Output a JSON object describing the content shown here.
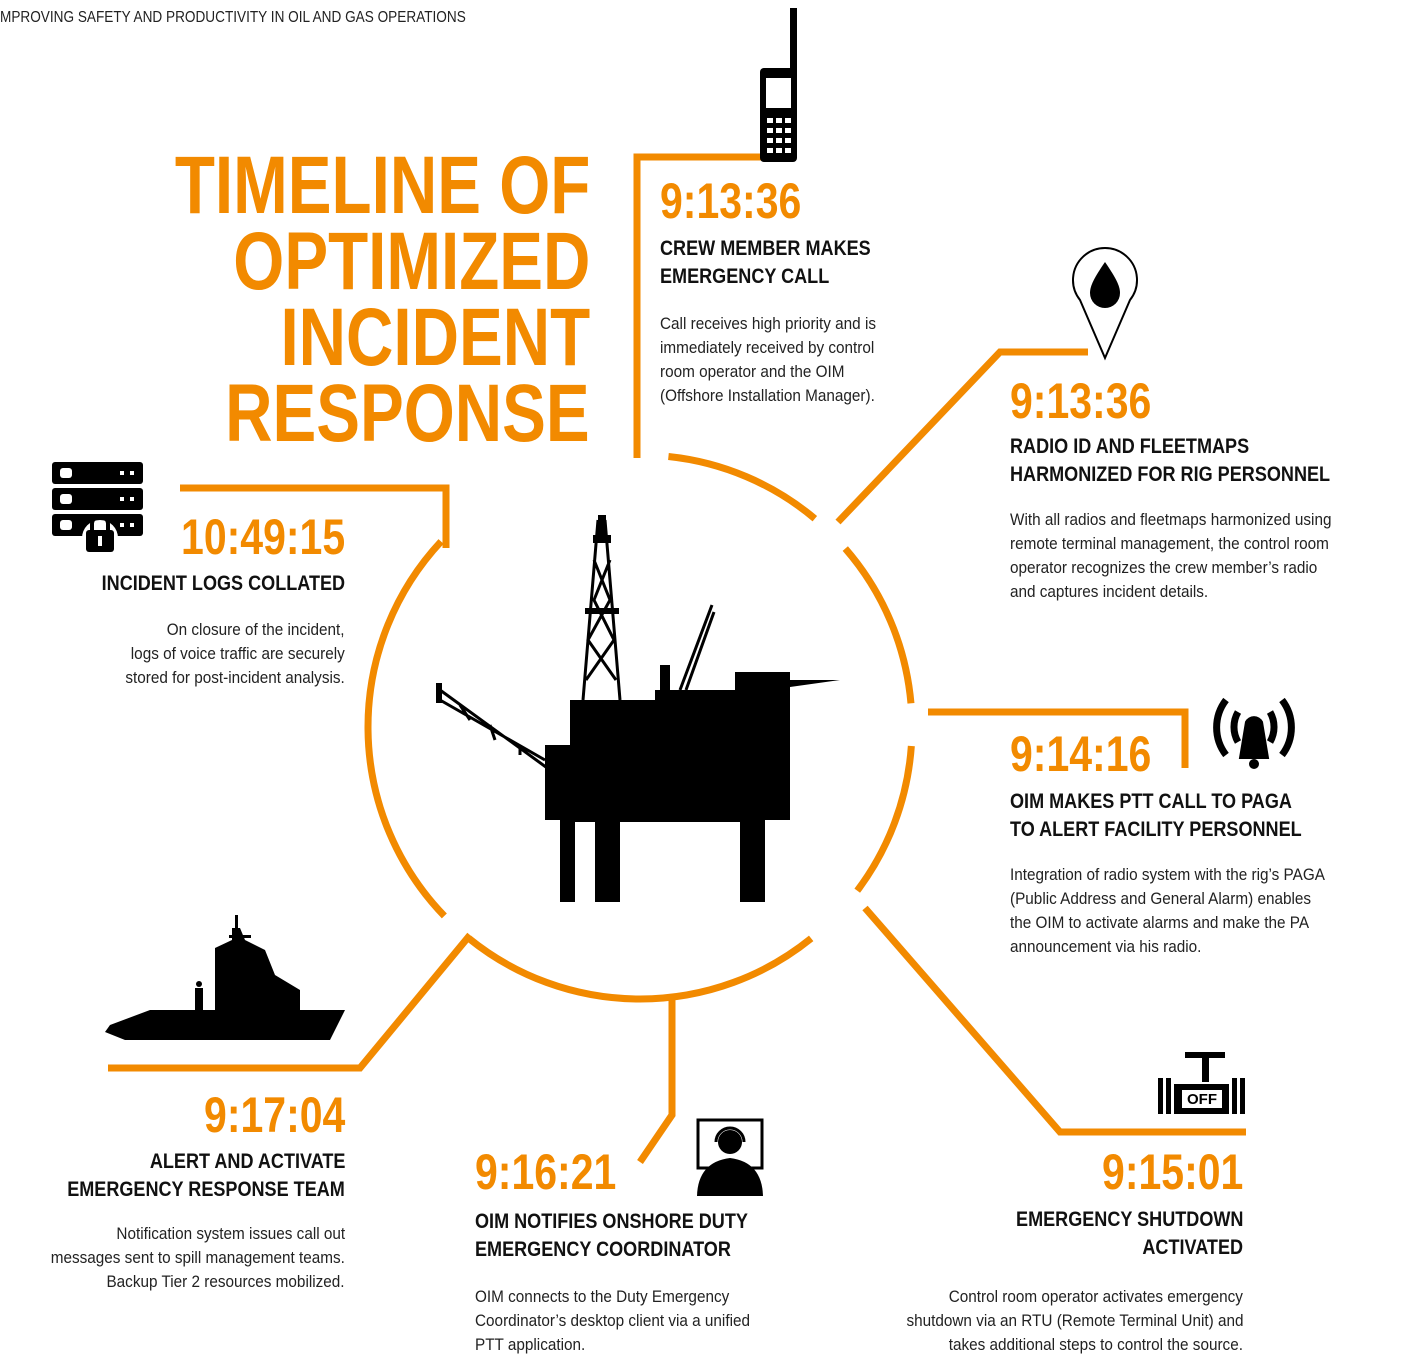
{
  "header": {
    "text": "MPROVING SAFETY AND PRODUCTIVITY IN OIL AND GAS OPERATIONS"
  },
  "title": [
    "TIMELINE OF",
    "OPTIMIZED",
    "INCIDENT",
    "RESPONSE"
  ],
  "events": [
    {
      "time": "9:13:36",
      "heading": [
        "CREW MEMBER MAKES",
        "EMERGENCY CALL"
      ],
      "description": [
        "Call receives high priority and is",
        "immediately received by control",
        "room operator and the OIM",
        "(Offshore Installation Manager)."
      ]
    },
    {
      "time": "9:13:36",
      "heading": [
        "RADIO ID AND FLEETMAPS",
        "HARMONIZED FOR RIG PERSONNEL"
      ],
      "description": [
        "With all radios and fleetmaps harmonized using",
        "remote terminal management, the control room",
        "operator recognizes the crew member’s radio",
        "and captures incident details."
      ]
    },
    {
      "time": "9:14:16",
      "heading": [
        "OIM MAKES PTT CALL TO PAGA",
        "TO ALERT FACILITY PERSONNEL"
      ],
      "description": [
        "Integration of radio system with the rig’s PAGA",
        "(Public Address and General Alarm) enables",
        "the OIM to activate alarms and make the PA",
        "announcement via his radio."
      ]
    },
    {
      "time": "9:15:01",
      "heading": [
        "EMERGENCY SHUTDOWN",
        "ACTIVATED"
      ],
      "description": [
        "Control room operator activates emergency",
        "shutdown via an RTU (Remote Terminal Unit) and",
        "takes additional steps to control the source."
      ]
    },
    {
      "time": "9:16:21",
      "heading": [
        "OIM NOTIFIES ONSHORE DUTY",
        "EMERGENCY COORDINATOR"
      ],
      "description": [
        "OIM connects to the Duty Emergency",
        "Coordinator’s desktop client via a unified",
        "PTT application."
      ]
    },
    {
      "time": "9:17:04",
      "heading": [
        "ALERT AND ACTIVATE",
        "EMERGENCY RESPONSE TEAM"
      ],
      "description": [
        "Notification system issues call out",
        "messages sent to spill management teams.",
        "Backup Tier 2 resources mobilized."
      ]
    },
    {
      "time": "10:49:15",
      "heading": [
        "INCIDENT LOGS COLLATED"
      ],
      "description": [
        "On closure of the incident,",
        "logs of voice traffic are securely",
        "stored for post-incident analysis."
      ]
    }
  ]
}
